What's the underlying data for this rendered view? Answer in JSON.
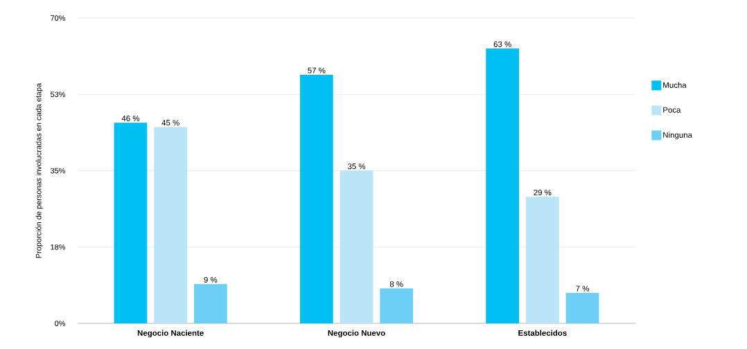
{
  "chart_data": {
    "type": "bar",
    "ylabel": "Proporción de personas involucradas en cada etapa",
    "categories": [
      "Negocio Naciente",
      "Negocio Nuevo",
      "Establecidos"
    ],
    "series": [
      {
        "name": "Mucha",
        "color": "#00c0f3",
        "values": [
          46,
          57,
          63
        ],
        "value_labels": [
          "46 %",
          "57 %",
          "63 %"
        ]
      },
      {
        "name": "Poca",
        "color": "#bae5f8",
        "values": [
          45,
          35,
          29
        ],
        "value_labels": [
          "45 %",
          "35 %",
          "29 %"
        ]
      },
      {
        "name": "Ninguna",
        "color": "#6dcff6",
        "values": [
          9,
          8,
          7
        ],
        "value_labels": [
          "9 %",
          "8 %",
          "7 %"
        ]
      }
    ],
    "ylim": [
      0,
      70
    ],
    "yticks": [
      {
        "value": 0,
        "label": "0%"
      },
      {
        "value": 17.5,
        "label": "18%"
      },
      {
        "value": 35,
        "label": "35%"
      },
      {
        "value": 52.5,
        "label": "53%"
      },
      {
        "value": 70,
        "label": "70%"
      }
    ],
    "grid": "y",
    "legend": "right"
  }
}
